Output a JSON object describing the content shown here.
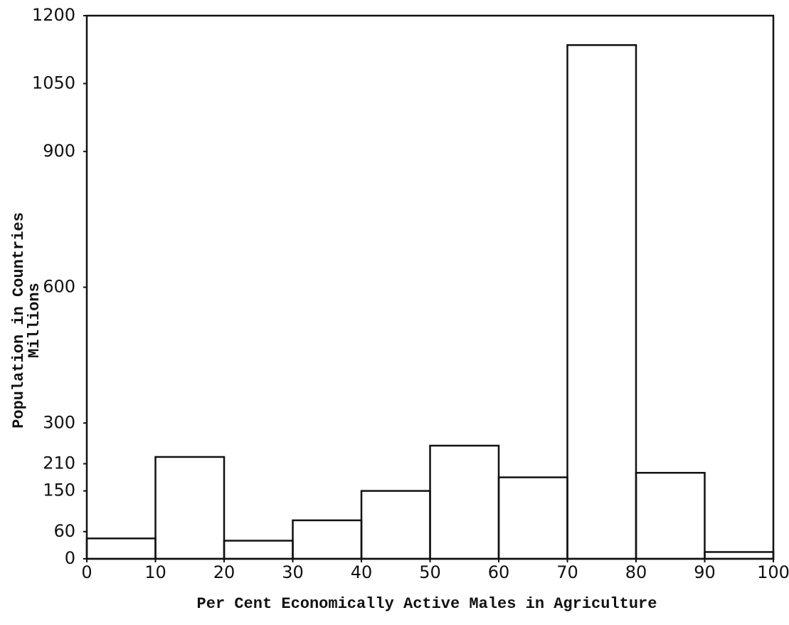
{
  "chart_data": {
    "type": "histogram",
    "xlabel": "Per Cent Economically Active Males in Agriculture",
    "ylabel": [
      "Population in Countries",
      "Millions"
    ],
    "bins": [
      0,
      10,
      20,
      30,
      40,
      50,
      60,
      70,
      80,
      90,
      100
    ],
    "values": [
      45,
      225,
      40,
      85,
      150,
      250,
      180,
      1135,
      190,
      15
    ],
    "xlim": [
      0,
      100
    ],
    "xticks": [
      0,
      10,
      20,
      30,
      40,
      50,
      60,
      70,
      80,
      90,
      100
    ],
    "ylim": [
      0,
      1200
    ],
    "yticks": [
      0,
      60,
      150,
      210,
      300,
      600,
      900,
      1050,
      1200
    ],
    "color": "#111111"
  }
}
